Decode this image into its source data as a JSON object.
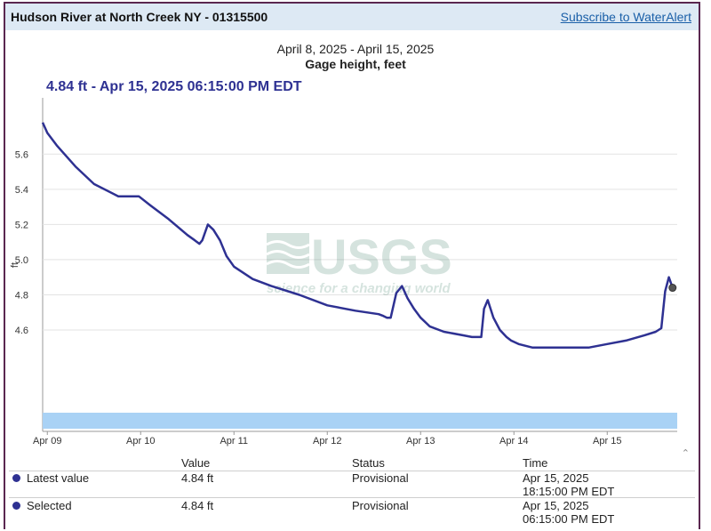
{
  "header": {
    "site_title": "Hudson River at North Creek NY - 01315500",
    "subscribe_link": "Subscribe to WaterAlert"
  },
  "chart_header": {
    "date_range": "April 8, 2025 - April 15, 2025",
    "parameter": "Gage height, feet",
    "readout": "4.84 ft - Apr 15, 2025 06:15:00 PM EDT"
  },
  "watermark": {
    "logo_text": "USGS",
    "tagline": "science for a changing world"
  },
  "colors": {
    "series": "#2e3192",
    "navigator": "#a9d2f5",
    "header_bg": "#dde9f4",
    "link": "#1a5fa8"
  },
  "chart_data": {
    "type": "line",
    "title": "Gage height, feet",
    "subtitle": "April 8, 2025 - April 15, 2025",
    "ylabel": "ft",
    "xlabel": "",
    "ylim": [
      4.15,
      5.92
    ],
    "xlim": [
      0.95,
      7.75
    ],
    "grid": true,
    "yticks": [
      4.6,
      4.8,
      5.0,
      5.2,
      5.4,
      5.6
    ],
    "ytick_labels": [
      "4.6",
      "4.8",
      "5.0",
      "5.2",
      "5.4",
      "5.6"
    ],
    "xticks": [
      1,
      2,
      3,
      4,
      5,
      6,
      7
    ],
    "xtick_labels": [
      "Apr 09",
      "Apr 10",
      "Apr 11",
      "Apr 12",
      "Apr 13",
      "Apr 14",
      "Apr 15"
    ],
    "series": [
      {
        "name": "Gage height",
        "x": [
          0.95,
          1.0,
          1.1,
          1.3,
          1.5,
          1.76,
          1.98,
          2.1,
          2.3,
          2.5,
          2.58,
          2.63,
          2.66,
          2.72,
          2.78,
          2.85,
          2.92,
          3.0,
          3.2,
          3.4,
          3.7,
          4.0,
          4.3,
          4.55,
          4.6,
          4.64,
          4.68,
          4.74,
          4.8,
          4.86,
          4.93,
          5.0,
          5.1,
          5.25,
          5.45,
          5.55,
          5.6,
          5.65,
          5.68,
          5.72,
          5.78,
          5.85,
          5.92,
          5.97,
          6.05,
          6.2,
          6.5,
          6.8,
          7.0,
          7.2,
          7.4,
          7.52,
          7.58,
          7.62,
          7.66,
          7.7
        ],
        "values": [
          5.78,
          5.72,
          5.65,
          5.53,
          5.43,
          5.36,
          5.36,
          5.31,
          5.23,
          5.14,
          5.11,
          5.09,
          5.11,
          5.2,
          5.17,
          5.11,
          5.02,
          4.96,
          4.89,
          4.85,
          4.8,
          4.74,
          4.71,
          4.69,
          4.68,
          4.67,
          4.67,
          4.81,
          4.85,
          4.78,
          4.72,
          4.67,
          4.62,
          4.59,
          4.57,
          4.56,
          4.56,
          4.56,
          4.72,
          4.77,
          4.67,
          4.6,
          4.56,
          4.54,
          4.52,
          4.5,
          4.5,
          4.5,
          4.52,
          4.54,
          4.57,
          4.59,
          4.61,
          4.82,
          4.9,
          4.84
        ]
      }
    ],
    "latest_point": {
      "x": 7.7,
      "value": 4.84
    }
  },
  "table": {
    "headers": [
      "Value",
      "Status",
      "Time"
    ],
    "rows": [
      {
        "label": "Latest value",
        "value": "4.84 ft",
        "status": "Provisional",
        "time_line1": "Apr 15, 2025",
        "time_line2": "18:15:00 PM EDT"
      },
      {
        "label": "Selected",
        "value": "4.84 ft",
        "status": "Provisional",
        "time_line1": "Apr 15, 2025",
        "time_line2": "06:15:00 PM EDT"
      }
    ]
  }
}
